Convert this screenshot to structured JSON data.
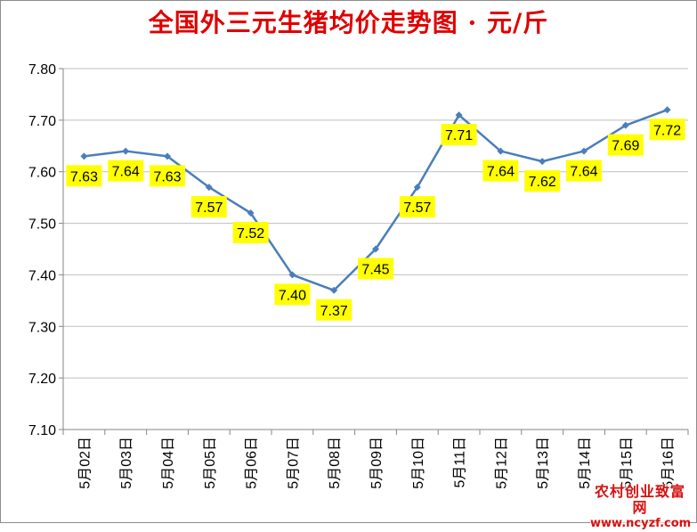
{
  "chart_data": {
    "type": "line",
    "title": "全国外三元生猪均价走势图 · 元/斤",
    "xlabel": "",
    "ylabel": "",
    "categories": [
      "5月02日",
      "5月03日",
      "5月04日",
      "5月05日",
      "5月06日",
      "5月07日",
      "5月08日",
      "5月09日",
      "5月10日",
      "5月11日",
      "5月12日",
      "5月13日",
      "5月14日",
      "5月15日",
      "5月16日"
    ],
    "series": [
      {
        "values": [
          7.63,
          7.64,
          7.63,
          7.57,
          7.52,
          7.4,
          7.37,
          7.45,
          7.57,
          7.71,
          7.64,
          7.62,
          7.64,
          7.69,
          7.72
        ]
      }
    ],
    "data_labels": [
      "7.63",
      "7.64",
      "7.63",
      "7.57",
      "7.52",
      "7.40",
      "7.37",
      "7.45",
      "7.57",
      "7.71",
      "7.64",
      "7.62",
      "7.64",
      "7.69",
      "7.72"
    ],
    "y_ticks": [
      "7.10",
      "7.20",
      "7.30",
      "7.40",
      "7.50",
      "7.60",
      "7.70",
      "7.80"
    ],
    "ylim": [
      7.1,
      7.8
    ],
    "grid": true,
    "legend": "none",
    "colors": {
      "line": "#4a7ebb",
      "marker": "#4a7ebb",
      "label_background": "#ffff00",
      "title": "#e00000",
      "grid": "#bfbfbf"
    }
  },
  "watermark": {
    "name": "农村创业致富网",
    "url": "www.ncyzf.com"
  }
}
